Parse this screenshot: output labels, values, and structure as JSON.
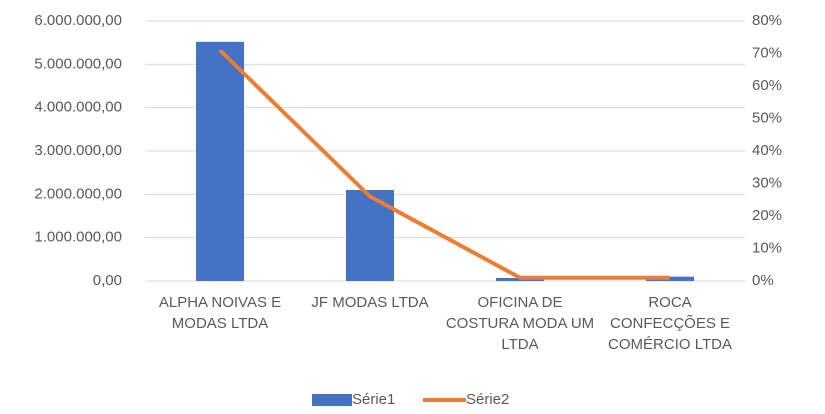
{
  "chart_data": {
    "type": "bar_line",
    "categories": [
      "ALPHA NOIVAS E MODAS LTDA",
      "JF MODAS LTDA",
      "OFICINA DE COSTURA MODA UM LTDA",
      "ROCA CONFECÇÕES E COMÉRCIO LTDA"
    ],
    "series": [
      {
        "name": "Série1",
        "color": "#4472c4",
        "type": "bar",
        "values": [
          5520000,
          2100000,
          70000,
          100000
        ]
      },
      {
        "name": "Série2",
        "color": "#ed7d31",
        "type": "line",
        "axis": "y2",
        "values": [
          71,
          26,
          1,
          1
        ]
      }
    ],
    "ylim": [
      0,
      6000000
    ],
    "yticks": [
      {
        "value": 0,
        "label": "0,00"
      },
      {
        "value": 1000000,
        "label": "1.000.000,00"
      },
      {
        "value": 2000000,
        "label": "2.000.000,00"
      },
      {
        "value": 3000000,
        "label": "3.000.000,00"
      },
      {
        "value": 4000000,
        "label": "4.000.000,00"
      },
      {
        "value": 5000000,
        "label": "5.000.000,00"
      },
      {
        "value": 6000000,
        "label": "6.000.000,00"
      }
    ],
    "y2lim": [
      0,
      80
    ],
    "y2ticks": [
      {
        "value": 0,
        "label": "0%"
      },
      {
        "value": 10,
        "label": "10%"
      },
      {
        "value": 20,
        "label": "20%"
      },
      {
        "value": 30,
        "label": "30%"
      },
      {
        "value": 40,
        "label": "40%"
      },
      {
        "value": 50,
        "label": "50%"
      },
      {
        "value": 60,
        "label": "60%"
      },
      {
        "value": 70,
        "label": "70%"
      },
      {
        "value": 80,
        "label": "80%"
      }
    ],
    "grid": true,
    "legend": "bottom"
  }
}
